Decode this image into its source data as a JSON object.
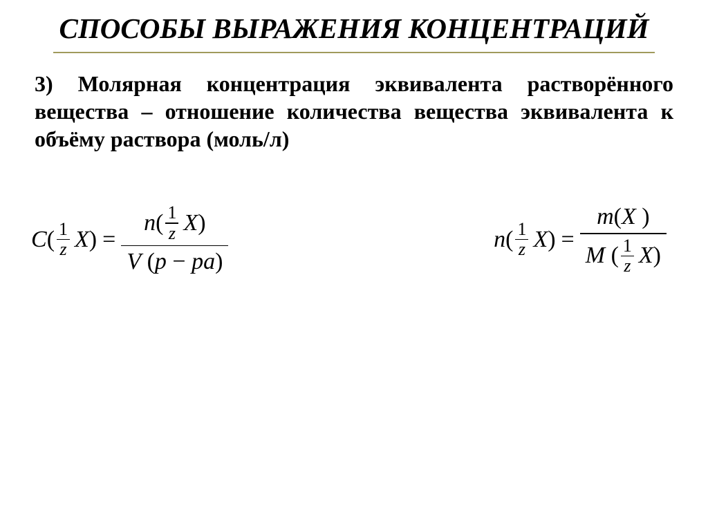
{
  "slide": {
    "title": "СПОСОБЫ ВЫРАЖЕНИЯ КОНЦЕНТРАЦИЙ",
    "body_text": "3) Молярная концентрация эквивалента растворённого вещества – отношение количества вещества эквивалента к объёму раствора (моль/л)",
    "formula1": {
      "lhs_func": "C",
      "frac_num": "1",
      "frac_den": "z",
      "var": "X",
      "rhs_num_func": "n",
      "rhs_den_V": "V",
      "rhs_den_p": "p",
      "rhs_den_minus": "−",
      "rhs_den_pa": "pa"
    },
    "formula2": {
      "lhs_func": "n",
      "frac_num": "1",
      "frac_den": "z",
      "var": "X",
      "rhs_num_func": "m",
      "rhs_den_func": "M"
    },
    "style": {
      "title_color": "#000000",
      "title_fontsize": 41,
      "body_fontsize": 32,
      "divider_color": "#a09a5c",
      "background_color": "#ffffff",
      "formula_fontsize": 34
    }
  }
}
